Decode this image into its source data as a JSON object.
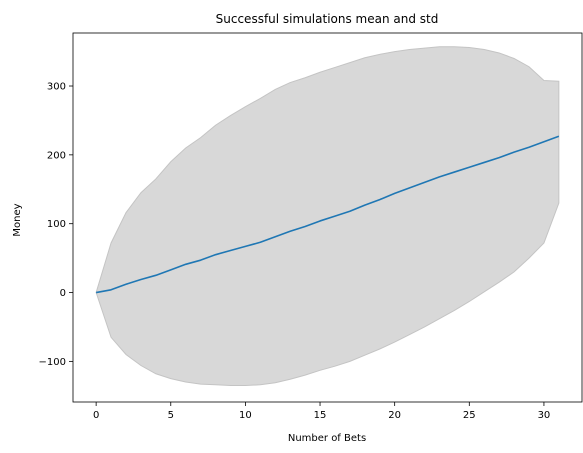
{
  "chart_data": {
    "type": "line",
    "title": "Successful simulations mean and std",
    "xlabel": "Number of Bets",
    "ylabel": "Money",
    "xlim": [
      -1.55,
      32.55
    ],
    "ylim": [
      -159,
      377
    ],
    "xticks": [
      0,
      5,
      10,
      15,
      20,
      25,
      30
    ],
    "yticks": [
      -100,
      0,
      100,
      200,
      300
    ],
    "grid": false,
    "x": [
      0,
      1,
      2,
      3,
      4,
      5,
      6,
      7,
      8,
      9,
      10,
      11,
      12,
      13,
      14,
      15,
      16,
      17,
      18,
      19,
      20,
      21,
      22,
      23,
      24,
      25,
      26,
      27,
      28,
      29,
      30,
      31
    ],
    "series": [
      {
        "values": [
          0,
          4,
          12,
          19,
          25,
          33,
          41,
          47,
          55,
          61,
          67,
          73,
          81,
          89,
          96,
          104,
          111,
          118,
          127,
          135,
          144,
          152,
          160,
          168,
          175,
          182,
          189,
          196,
          204,
          211,
          219,
          227
        ],
        "color": "#1f77b4"
      }
    ],
    "band": {
      "upper": [
        0,
        72,
        116,
        145,
        165,
        190,
        210,
        225,
        243,
        257,
        270,
        282,
        295,
        305,
        312,
        320,
        327,
        334,
        341,
        346,
        350,
        353,
        355,
        357,
        357,
        356,
        353,
        348,
        340,
        328,
        308,
        307
      ],
      "lower": [
        0,
        -65,
        -90,
        -106,
        -118,
        -125,
        -130,
        -133,
        -134,
        -135,
        -135,
        -134,
        -131,
        -126,
        -120,
        -113,
        -107,
        -100,
        -91,
        -82,
        -72,
        -61,
        -50,
        -38,
        -26,
        -13,
        1,
        15,
        30,
        50,
        72,
        130
      ],
      "color": "#d8d8d8"
    }
  }
}
